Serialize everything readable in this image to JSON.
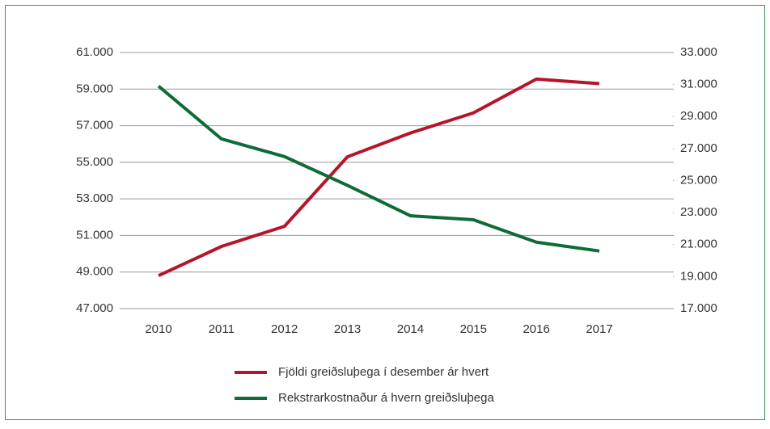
{
  "chart_data": {
    "type": "line",
    "categories": [
      "2010",
      "2011",
      "2012",
      "2013",
      "2014",
      "2015",
      "2016",
      "2017"
    ],
    "series": [
      {
        "name": "Fjöldi greiðsluþega í desember ár hvert",
        "color": "#b5152b",
        "axis": "y",
        "values": [
          48800,
          50400,
          51500,
          55300,
          56600,
          57700,
          59550,
          59300
        ]
      },
      {
        "name": "Rekstrarkostnaður á hvern greiðsluþega",
        "color": "#0f6b35",
        "axis": "y2",
        "values": [
          30900,
          27600,
          26500,
          24700,
          22800,
          22550,
          21150,
          20600
        ]
      }
    ],
    "ylim": [
      47000,
      61000
    ],
    "yticks": [
      {
        "value": 47000,
        "label": "47.000"
      },
      {
        "value": 49000,
        "label": "49.000"
      },
      {
        "value": 51000,
        "label": "51.000"
      },
      {
        "value": 53000,
        "label": "53.000"
      },
      {
        "value": 55000,
        "label": "55.000"
      },
      {
        "value": 57000,
        "label": "57.000"
      },
      {
        "value": 59000,
        "label": "59.000"
      },
      {
        "value": 61000,
        "label": "61.000"
      }
    ],
    "y2lim": [
      17000,
      33000
    ],
    "y2ticks": [
      {
        "value": 17000,
        "label": "17.000"
      },
      {
        "value": 19000,
        "label": "19.000"
      },
      {
        "value": 21000,
        "label": "21.000"
      },
      {
        "value": 23000,
        "label": "23.000"
      },
      {
        "value": 25000,
        "label": "25.000"
      },
      {
        "value": 27000,
        "label": "27.000"
      },
      {
        "value": 29000,
        "label": "29.000"
      },
      {
        "value": 31000,
        "label": "31.000"
      },
      {
        "value": 33000,
        "label": "33.000"
      }
    ],
    "grid": true
  }
}
